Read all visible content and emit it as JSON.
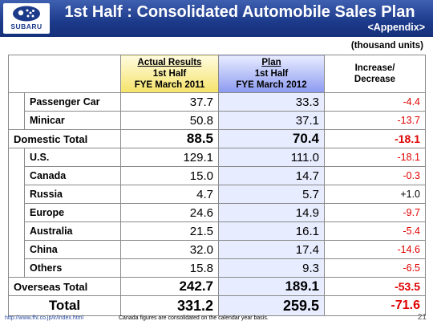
{
  "logo": {
    "text": "SUBARU",
    "icon": "subaru-star-emblem-icon"
  },
  "header": {
    "title": "1st Half : Consolidated Automobile Sales Plan",
    "subtitle": "<Appendix>"
  },
  "units": "(thousand units)",
  "table": {
    "headers": {
      "actual": [
        "Actual Results",
        "1st Half",
        "FYE March 2011"
      ],
      "plan": [
        "Plan",
        "1st Half",
        "FYE March 2012"
      ],
      "increase": [
        "Increase/",
        "Decrease"
      ]
    },
    "domestic_rows": [
      {
        "label": "Passenger Car",
        "actual": "37.7",
        "plan": "33.3",
        "change": "-4.4"
      },
      {
        "label": "Minicar",
        "actual": "50.8",
        "plan": "37.1",
        "change": "-13.7"
      }
    ],
    "domestic_total": {
      "label": "Domestic Total",
      "actual": "88.5",
      "plan": "70.4",
      "change": "-18.1"
    },
    "overseas_rows": [
      {
        "label": "U.S.",
        "actual": "129.1",
        "plan": "111.0",
        "change": "-18.1"
      },
      {
        "label": "Canada",
        "actual": "15.0",
        "plan": "14.7",
        "change": "-0.3"
      },
      {
        "label": "Russia",
        "actual": "4.7",
        "plan": "5.7",
        "change": "+1.0"
      },
      {
        "label": "Europe",
        "actual": "24.6",
        "plan": "14.9",
        "change": "-9.7"
      },
      {
        "label": "Australia",
        "actual": "21.5",
        "plan": "16.1",
        "change": "-5.4"
      },
      {
        "label": "China",
        "actual": "32.0",
        "plan": "17.4",
        "change": "-14.6"
      },
      {
        "label": "Others",
        "actual": "15.8",
        "plan": "9.3",
        "change": "-6.5"
      }
    ],
    "overseas_total": {
      "label": "Overseas Total",
      "actual": "242.7",
      "plan": "189.1",
      "change": "-53.5"
    },
    "grand_total": {
      "label": "Total",
      "actual": "331.2",
      "plan": "259.5",
      "change": "-71.6"
    }
  },
  "colors": {
    "header_blue": "#1c3a8a",
    "negative": "#e00000",
    "plan_fill": "#e8ecff",
    "actual_fill": "#f5e36a"
  },
  "footer": {
    "url": "http://www.fhi.co.jp/ir/index.html",
    "note": "Canada figures are consolidated on the calendar year basis.",
    "page": "21"
  }
}
